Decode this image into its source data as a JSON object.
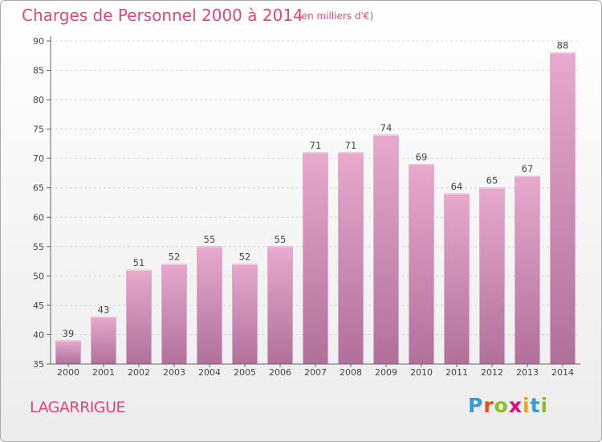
{
  "header": {
    "title": "Charges de Personnel 2000 à 2014",
    "subtitle": "(en milliers d'€)"
  },
  "footer": {
    "commune": "LAGARRIGUE",
    "logo_text": "Proxiti"
  },
  "colors": {
    "accent": "#e0457b",
    "bar_top": "#e8a9cd",
    "bar_bottom": "#b0709a"
  },
  "chart_data": {
    "type": "bar",
    "categories": [
      "2000",
      "2001",
      "2002",
      "2003",
      "2004",
      "2005",
      "2006",
      "2007",
      "2008",
      "2009",
      "2010",
      "2011",
      "2012",
      "2013",
      "2014"
    ],
    "values": [
      39,
      43,
      51,
      52,
      55,
      52,
      55,
      71,
      71,
      74,
      69,
      64,
      65,
      67,
      88
    ],
    "title": "Charges de Personnel 2000 à 2014",
    "subtitle": "(en milliers d'€)",
    "xlabel": "",
    "ylabel": "",
    "ylim": [
      35,
      90
    ],
    "yticks": [
      35,
      40,
      45,
      50,
      55,
      60,
      65,
      70,
      75,
      80,
      85,
      90
    ],
    "grid": true,
    "legend": "none"
  }
}
